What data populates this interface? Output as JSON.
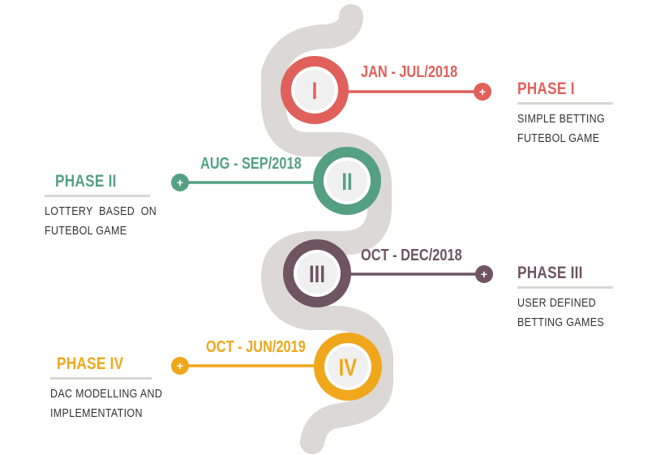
{
  "colors": {
    "road": "#dcd8d6",
    "phase1": "#e0615b",
    "phase2": "#55a083",
    "phase3": "#6e5560",
    "phase4": "#f0a71b",
    "disc": "#ffffff",
    "discInner": "#eeeeee"
  },
  "phases": [
    {
      "id": "phase1",
      "numeral": "I",
      "date": "JAN - JUL/2018",
      "title": "PHASE I",
      "desc": [
        "SIMPLE BETTING",
        "FUTEBOL GAME"
      ],
      "side": "right",
      "color": "#e0615b"
    },
    {
      "id": "phase2",
      "numeral": "II",
      "date": "AUG - SEP/2018",
      "title": "PHASE II",
      "desc": [
        "LOTTERY  BASED  ON",
        "FUTEBOL GAME"
      ],
      "side": "left",
      "color": "#55a083"
    },
    {
      "id": "phase3",
      "numeral": "III",
      "date": "OCT - DEC/2018",
      "title": "PHASE III",
      "desc": [
        "USER DEFINED",
        "BETTING GAMES"
      ],
      "side": "right",
      "color": "#6e5560"
    },
    {
      "id": "phase4",
      "numeral": "IV",
      "date": "OCT - JUN/2019",
      "title": "PHASE IV",
      "desc": [
        "DAC MODELLING AND",
        "IMPLEMENTATION"
      ],
      "side": "left",
      "color": "#f0a71b"
    }
  ]
}
